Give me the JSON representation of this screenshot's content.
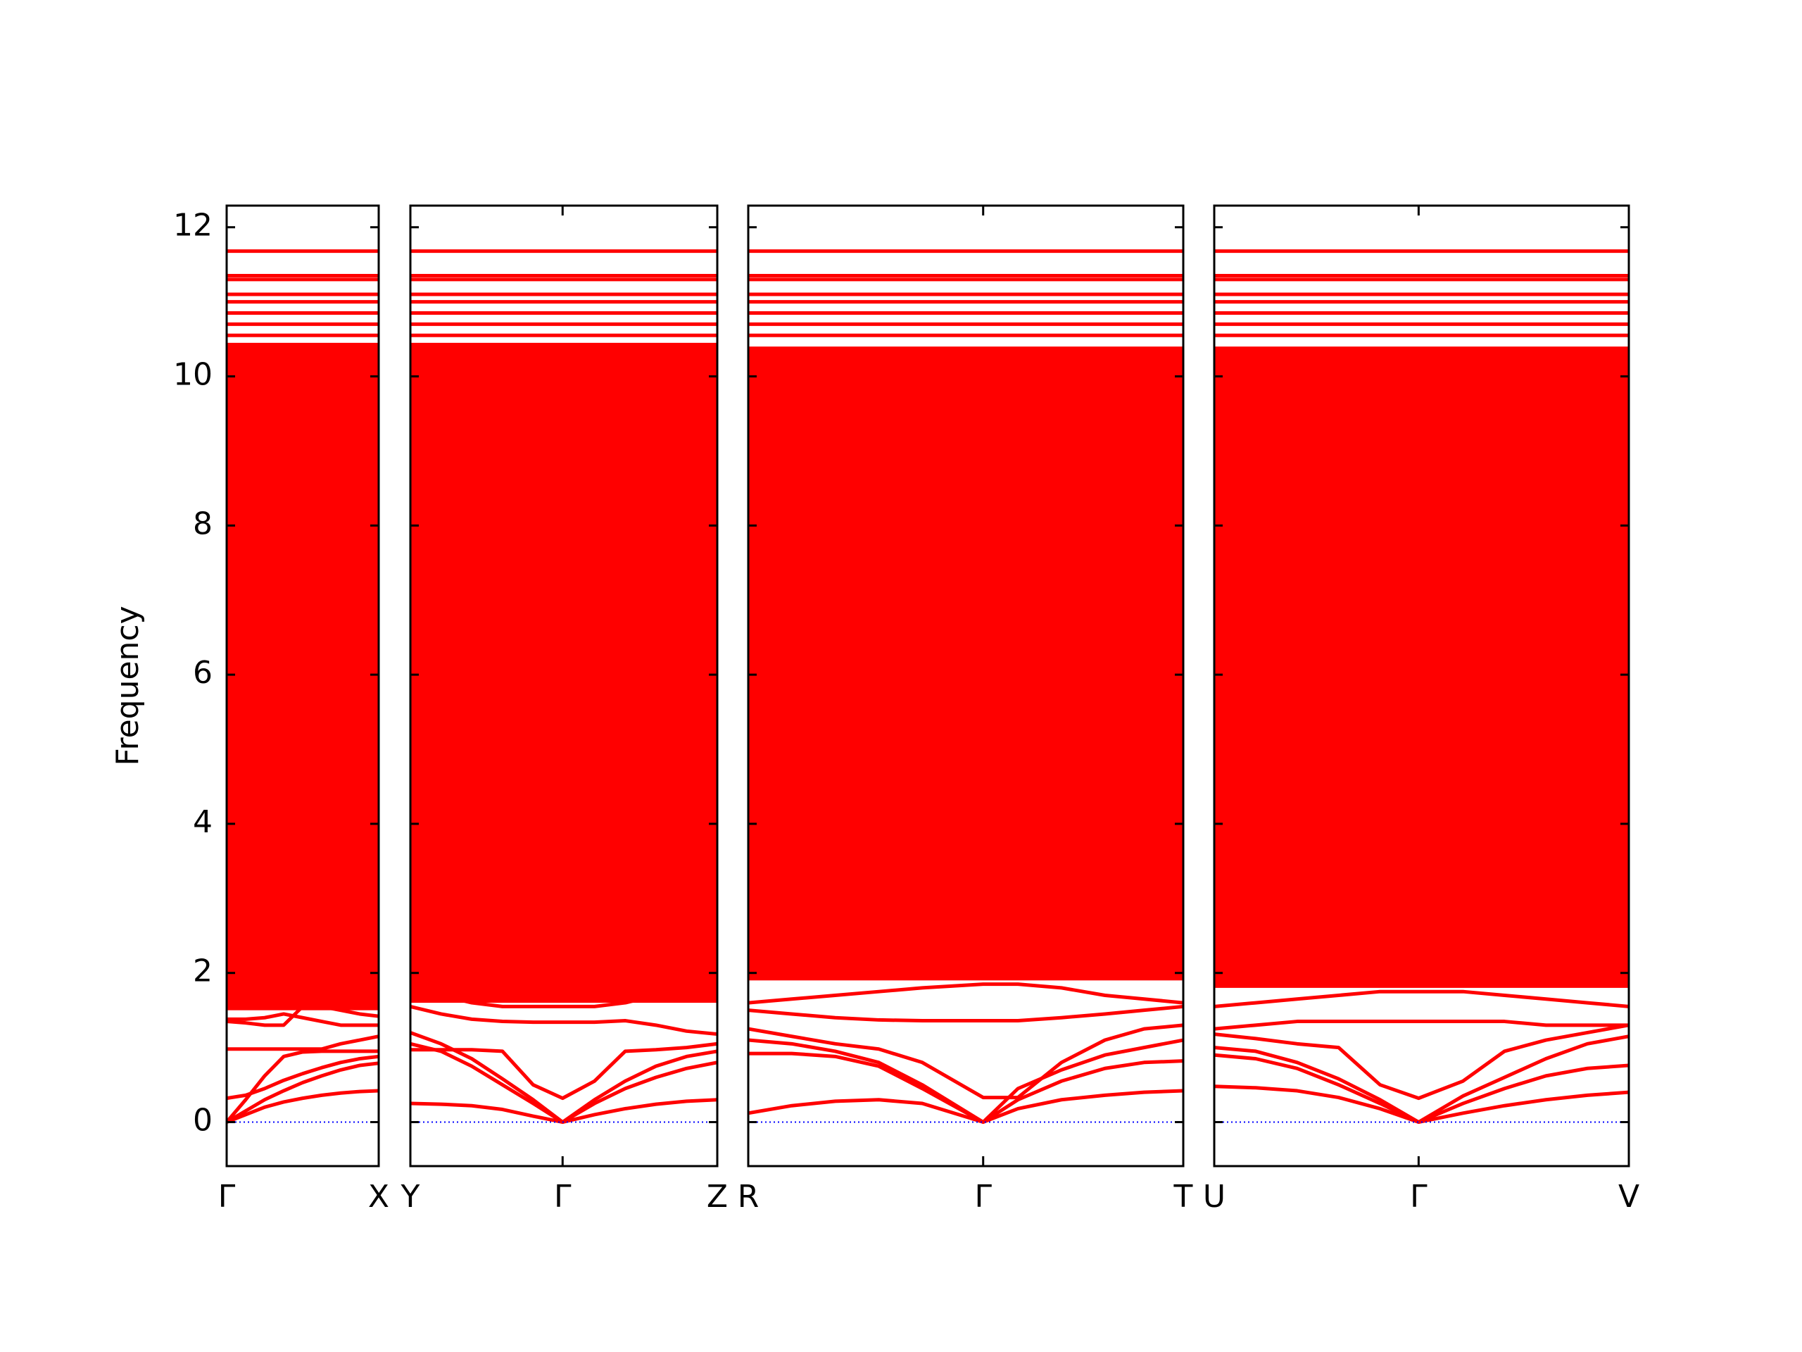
{
  "chart_data": {
    "type": "band_structure",
    "ylabel": "Frequency",
    "ylim": [
      -0.59,
      12.29
    ],
    "yticks": [
      0,
      2,
      4,
      6,
      8,
      10,
      12
    ],
    "color": "#ff0000",
    "zero_line": 0,
    "zero_line_color": "#0000ff",
    "panels": [
      {
        "xlim": [
          0,
          1
        ],
        "xticks": [
          {
            "value": 0,
            "label": "Γ"
          },
          {
            "value": 1,
            "label": "X"
          }
        ],
        "x": [
          0,
          0.125,
          0.25,
          0.375,
          0.5,
          0.625,
          0.75,
          0.875,
          1
        ],
        "continuum": [
          1.5,
          10.45
        ],
        "levels": [
          1.6,
          1.75,
          1.9,
          2.1,
          10.55,
          10.7,
          10.85,
          11.0,
          11.1,
          11.3,
          11.35,
          11.68
        ],
        "bands": [
          [
            0,
            0.1,
            0.2,
            0.27,
            0.32,
            0.36,
            0.39,
            0.41,
            0.42
          ],
          [
            0,
            0.15,
            0.3,
            0.42,
            0.53,
            0.62,
            0.7,
            0.76,
            0.79
          ],
          [
            0.32,
            0.36,
            0.45,
            0.56,
            0.65,
            0.73,
            0.8,
            0.85,
            0.88
          ],
          [
            0,
            0.3,
            0.62,
            0.88,
            0.94,
            0.95,
            0.95,
            0.95,
            0.95
          ],
          [
            0.98,
            0.98,
            0.98,
            0.98,
            0.98,
            0.98,
            1.05,
            1.1,
            1.15
          ],
          [
            1.35,
            1.33,
            1.3,
            1.3,
            1.55,
            1.55,
            1.5,
            1.45,
            1.42
          ],
          [
            1.38,
            1.38,
            1.4,
            1.45,
            1.4,
            1.35,
            1.3,
            1.3,
            1.3
          ]
        ]
      },
      {
        "xlim": [
          0,
          1
        ],
        "xticks": [
          {
            "value": 0,
            "label": "Y"
          },
          {
            "value": 0.496,
            "label": "Γ"
          },
          {
            "value": 1,
            "label": "Z"
          }
        ],
        "x": [
          0,
          0.1,
          0.2,
          0.3,
          0.4,
          0.496,
          0.6,
          0.7,
          0.8,
          0.9,
          1
        ],
        "continuum": [
          1.6,
          10.45
        ],
        "levels": [
          1.9,
          2.05,
          10.55,
          10.7,
          10.85,
          11.0,
          11.1,
          11.3,
          11.35,
          11.68
        ],
        "bands": [
          [
            0.25,
            0.24,
            0.22,
            0.17,
            0.08,
            0,
            0.1,
            0.18,
            0.24,
            0.28,
            0.3
          ],
          [
            1.05,
            0.95,
            0.75,
            0.5,
            0.25,
            0,
            0.25,
            0.45,
            0.6,
            0.72,
            0.8
          ],
          [
            1.2,
            1.05,
            0.85,
            0.58,
            0.3,
            0,
            0.3,
            0.55,
            0.75,
            0.88,
            0.95
          ],
          [
            0.97,
            0.97,
            0.97,
            0.95,
            0.5,
            0.32,
            0.55,
            0.95,
            0.97,
            1.0,
            1.05
          ],
          [
            1.55,
            1.45,
            1.38,
            1.35,
            1.34,
            1.34,
            1.34,
            1.36,
            1.3,
            1.22,
            1.18
          ],
          [
            1.75,
            1.7,
            1.6,
            1.55,
            1.55,
            1.55,
            1.55,
            1.6,
            1.7,
            1.9,
            2.0
          ]
        ]
      },
      {
        "xlim": [
          0,
          1
        ],
        "xticks": [
          {
            "value": 0,
            "label": "R"
          },
          {
            "value": 0.54,
            "label": "Γ"
          },
          {
            "value": 1,
            "label": "T"
          }
        ],
        "x": [
          0,
          0.1,
          0.2,
          0.3,
          0.4,
          0.54,
          0.62,
          0.72,
          0.82,
          0.91,
          1
        ],
        "continuum": [
          1.9,
          10.4
        ],
        "levels": [
          2.05,
          2.2,
          10.55,
          10.7,
          10.85,
          11.0,
          11.1,
          11.3,
          11.35,
          11.68
        ],
        "bands": [
          [
            0.12,
            0.22,
            0.28,
            0.3,
            0.25,
            0,
            0.18,
            0.3,
            0.36,
            0.4,
            0.42
          ],
          [
            0.92,
            0.92,
            0.88,
            0.75,
            0.45,
            0,
            0.3,
            0.55,
            0.72,
            0.8,
            0.82
          ],
          [
            1.1,
            1.05,
            0.95,
            0.8,
            0.5,
            0,
            0.45,
            0.7,
            0.9,
            1.0,
            1.1
          ],
          [
            1.25,
            1.15,
            1.05,
            0.98,
            0.8,
            0.33,
            0.33,
            0.8,
            1.1,
            1.25,
            1.3
          ],
          [
            1.5,
            1.45,
            1.4,
            1.37,
            1.36,
            1.36,
            1.36,
            1.4,
            1.45,
            1.5,
            1.55
          ],
          [
            1.6,
            1.65,
            1.7,
            1.75,
            1.8,
            1.85,
            1.85,
            1.8,
            1.7,
            1.65,
            1.6
          ]
        ]
      },
      {
        "xlim": [
          0,
          1
        ],
        "xticks": [
          {
            "value": 0,
            "label": "U"
          },
          {
            "value": 0.493,
            "label": "Γ"
          },
          {
            "value": 1,
            "label": "V"
          }
        ],
        "x": [
          0,
          0.1,
          0.2,
          0.3,
          0.4,
          0.493,
          0.6,
          0.7,
          0.8,
          0.9,
          1
        ],
        "continuum": [
          1.8,
          10.4
        ],
        "levels": [
          1.95,
          2.15,
          10.55,
          10.7,
          10.85,
          11.0,
          11.1,
          11.3,
          11.35,
          11.68
        ],
        "bands": [
          [
            0.48,
            0.46,
            0.42,
            0.33,
            0.18,
            0,
            0.12,
            0.22,
            0.3,
            0.36,
            0.4
          ],
          [
            0.9,
            0.85,
            0.72,
            0.5,
            0.25,
            0,
            0.25,
            0.45,
            0.62,
            0.72,
            0.76
          ],
          [
            1.0,
            0.95,
            0.8,
            0.58,
            0.3,
            0,
            0.35,
            0.6,
            0.85,
            1.05,
            1.15
          ],
          [
            1.18,
            1.12,
            1.05,
            1.0,
            0.5,
            0.32,
            0.55,
            0.95,
            1.1,
            1.2,
            1.3
          ],
          [
            1.25,
            1.3,
            1.35,
            1.35,
            1.35,
            1.35,
            1.35,
            1.35,
            1.3,
            1.3,
            1.3
          ],
          [
            1.55,
            1.6,
            1.65,
            1.7,
            1.75,
            1.75,
            1.75,
            1.7,
            1.65,
            1.6,
            1.55
          ]
        ]
      }
    ]
  }
}
